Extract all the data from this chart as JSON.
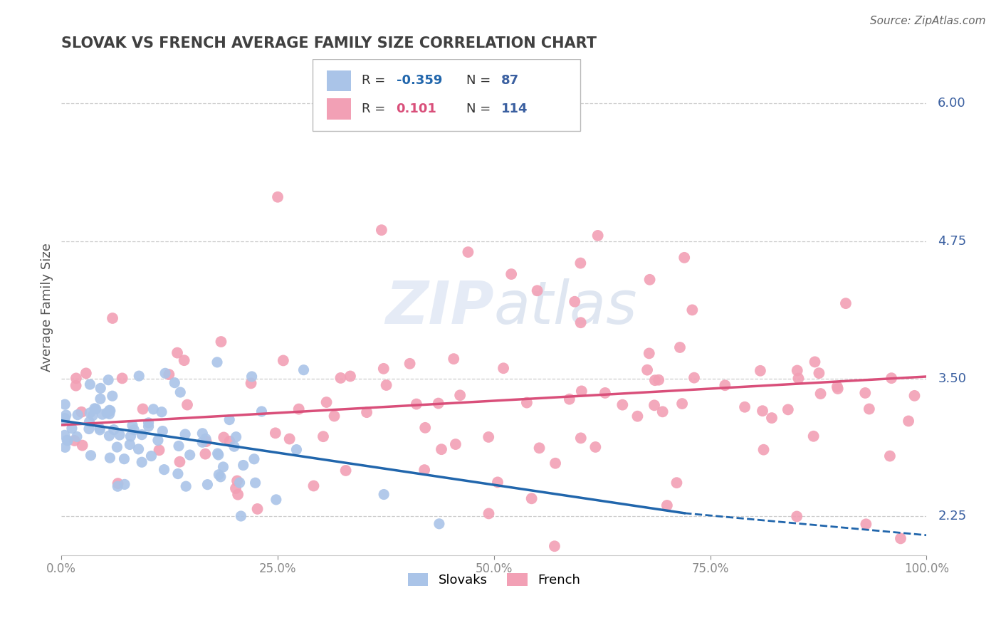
{
  "title": "SLOVAK VS FRENCH AVERAGE FAMILY SIZE CORRELATION CHART",
  "source": "Source: ZipAtlas.com",
  "ylabel": "Average Family Size",
  "yticks": [
    2.25,
    3.5,
    4.75,
    6.0
  ],
  "xlim": [
    0.0,
    1.0
  ],
  "ylim": [
    1.9,
    6.4
  ],
  "slovak_R": -0.359,
  "slovak_N": 87,
  "french_R": 0.101,
  "french_N": 114,
  "slovak_color": "#aac4e8",
  "french_color": "#f2a0b5",
  "slovak_line_color": "#2166ac",
  "french_line_color": "#d94f7a",
  "background_color": "#ffffff",
  "grid_color": "#cccccc",
  "title_color": "#404040",
  "tick_label_color": "#3a5fa0",
  "watermark_color": "#d5dff0",
  "legend_slovak_label": "Slovaks",
  "legend_french_label": "French",
  "sk_line_x0": 0.0,
  "sk_line_y0": 3.12,
  "sk_line_x1": 0.72,
  "sk_line_y1": 2.28,
  "sk_line_dash_x1": 1.0,
  "sk_line_dash_y1": 2.08,
  "fr_line_x0": 0.0,
  "fr_line_y0": 3.08,
  "fr_line_x1": 1.0,
  "fr_line_y1": 3.52
}
